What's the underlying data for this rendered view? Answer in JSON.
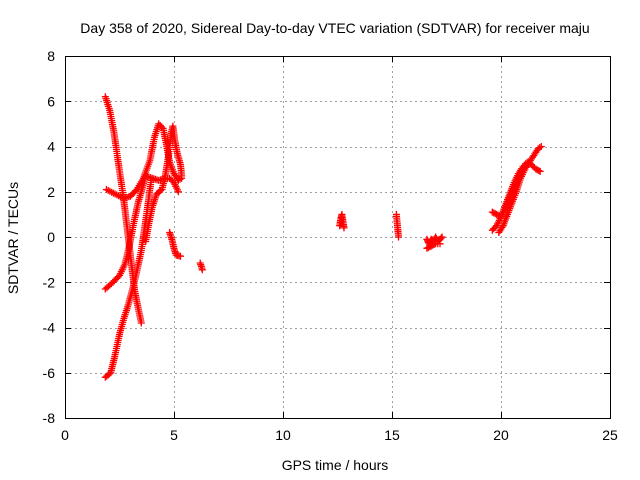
{
  "chart_data": {
    "type": "scatter",
    "title": "Day 358 of 2020, Sidereal Day-to-day VTEC variation (SDTVAR) for receiver maju",
    "xlabel": "GPS time / hours",
    "ylabel": "SDTVAR / TECUs",
    "xlim": [
      0,
      25
    ],
    "ylim": [
      -8,
      8
    ],
    "xticks": [
      "0",
      "5",
      "10",
      "15",
      "20",
      "25"
    ],
    "yticks": [
      "-8",
      "-6",
      "-4",
      "-2",
      "0",
      "2",
      "4",
      "6",
      "8"
    ],
    "grid": true,
    "marker": "plus",
    "color": "#ff0000",
    "segments": [
      [
        [
          1.85,
          6.2
        ],
        [
          2.05,
          5.6
        ],
        [
          2.25,
          4.6
        ],
        [
          2.4,
          3.6
        ],
        [
          2.55,
          2.6
        ],
        [
          2.7,
          1.6
        ],
        [
          2.8,
          0.8
        ],
        [
          2.9,
          0.0
        ],
        [
          3.0,
          -0.8
        ],
        [
          3.1,
          -1.6
        ],
        [
          3.2,
          -2.4
        ],
        [
          3.35,
          -3.1
        ],
        [
          3.5,
          -3.8
        ]
      ],
      [
        [
          1.85,
          -6.2
        ],
        [
          2.1,
          -6.0
        ],
        [
          2.3,
          -5.2
        ],
        [
          2.5,
          -4.3
        ],
        [
          2.7,
          -3.6
        ],
        [
          2.9,
          -3.0
        ],
        [
          3.1,
          -2.3
        ],
        [
          3.3,
          -1.5
        ],
        [
          3.5,
          -0.6
        ],
        [
          3.65,
          0.4
        ],
        [
          3.8,
          1.4
        ],
        [
          3.95,
          2.5
        ]
      ],
      [
        [
          1.85,
          -2.3
        ],
        [
          2.2,
          -2.0
        ],
        [
          2.5,
          -1.7
        ],
        [
          2.75,
          -1.2
        ],
        [
          2.95,
          -0.4
        ],
        [
          3.15,
          0.6
        ],
        [
          3.35,
          1.5
        ],
        [
          3.5,
          2.0
        ],
        [
          3.7,
          2.7
        ],
        [
          4.0,
          2.6
        ],
        [
          4.3,
          2.5
        ],
        [
          4.6,
          2.6
        ],
        [
          4.8,
          2.6
        ],
        [
          5.0,
          2.4
        ],
        [
          5.2,
          2.0
        ]
      ],
      [
        [
          1.9,
          2.1
        ],
        [
          2.3,
          1.9
        ],
        [
          2.7,
          1.7
        ],
        [
          3.0,
          1.8
        ],
        [
          3.3,
          2.1
        ],
        [
          3.6,
          2.6
        ],
        [
          3.9,
          3.4
        ],
        [
          4.1,
          4.4
        ],
        [
          4.3,
          5.0
        ],
        [
          4.5,
          4.8
        ],
        [
          4.65,
          4.1
        ],
        [
          4.8,
          3.3
        ],
        [
          5.0,
          2.8
        ],
        [
          5.2,
          2.5
        ],
        [
          5.35,
          2.6
        ]
      ],
      [
        [
          3.7,
          -0.2
        ],
        [
          3.85,
          0.6
        ],
        [
          4.0,
          1.3
        ],
        [
          4.2,
          1.9
        ],
        [
          4.45,
          2.1
        ],
        [
          4.6,
          2.7
        ],
        [
          4.75,
          3.6
        ],
        [
          4.85,
          4.5
        ],
        [
          4.95,
          4.9
        ],
        [
          5.05,
          4.2
        ],
        [
          5.15,
          3.7
        ],
        [
          5.3,
          3.2
        ],
        [
          5.35,
          2.7
        ]
      ],
      [
        [
          4.8,
          0.2
        ],
        [
          4.9,
          -0.1
        ],
        [
          5.0,
          -0.5
        ],
        [
          5.1,
          -0.8
        ],
        [
          5.3,
          -0.85
        ]
      ],
      [
        [
          6.2,
          -1.15
        ],
        [
          6.25,
          -1.3
        ],
        [
          6.3,
          -1.45
        ]
      ],
      [
        [
          12.6,
          0.5
        ],
        [
          12.65,
          0.8
        ],
        [
          12.7,
          1.0
        ],
        [
          12.75,
          0.7
        ],
        [
          12.8,
          0.4
        ]
      ],
      [
        [
          15.2,
          1.0
        ],
        [
          15.25,
          0.5
        ],
        [
          15.3,
          0.0
        ]
      ],
      [
        [
          16.6,
          -0.1
        ],
        [
          16.7,
          -0.3
        ],
        [
          16.8,
          -0.1
        ],
        [
          16.9,
          -0.2
        ],
        [
          17.0,
          0.0
        ],
        [
          17.1,
          -0.2
        ],
        [
          17.2,
          -0.1
        ],
        [
          17.3,
          0.0
        ]
      ],
      [
        [
          16.6,
          -0.5
        ],
        [
          16.8,
          -0.4
        ],
        [
          17.0,
          -0.3
        ],
        [
          17.2,
          -0.3
        ]
      ],
      [
        [
          19.6,
          0.3
        ],
        [
          19.8,
          0.5
        ],
        [
          20.0,
          0.9
        ],
        [
          20.2,
          1.4
        ],
        [
          20.4,
          1.9
        ],
        [
          20.6,
          2.4
        ],
        [
          20.8,
          2.8
        ],
        [
          21.0,
          3.1
        ],
        [
          21.2,
          3.3
        ],
        [
          21.4,
          3.2
        ],
        [
          21.6,
          3.0
        ],
        [
          21.8,
          2.9
        ]
      ],
      [
        [
          19.6,
          1.1
        ],
        [
          19.8,
          1.0
        ],
        [
          20.0,
          0.9
        ],
        [
          20.2,
          1.3
        ],
        [
          20.4,
          1.8
        ],
        [
          20.6,
          2.2
        ],
        [
          20.8,
          2.6
        ],
        [
          21.0,
          3.0
        ]
      ],
      [
        [
          19.9,
          0.2
        ],
        [
          20.1,
          0.5
        ],
        [
          20.3,
          1.0
        ],
        [
          20.5,
          1.5
        ],
        [
          20.7,
          2.0
        ],
        [
          20.9,
          2.6
        ],
        [
          21.1,
          3.0
        ],
        [
          21.3,
          3.3
        ],
        [
          21.5,
          3.6
        ],
        [
          21.7,
          3.9
        ],
        [
          21.85,
          4.0
        ]
      ]
    ]
  }
}
